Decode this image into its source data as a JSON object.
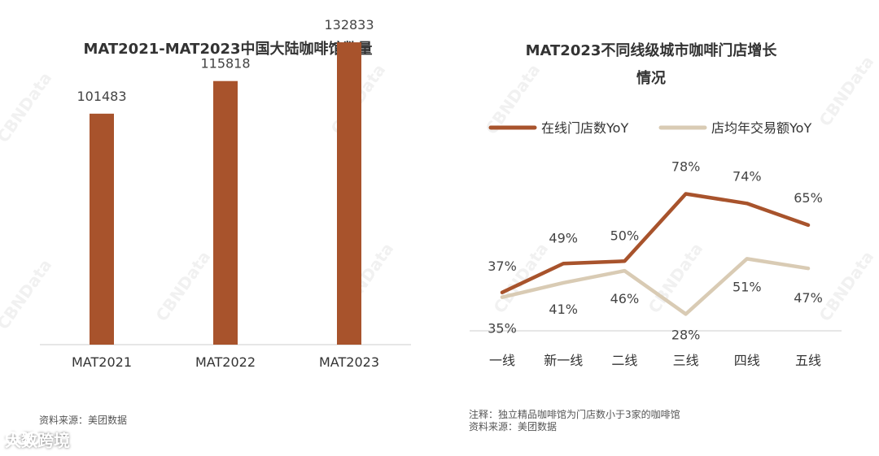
{
  "left": {
    "title": "MAT2021-MAT2023中国大陆咖啡馆数量",
    "source": "资料来源：美团数据"
  },
  "right": {
    "title_line1": "MAT2023不同线级城市咖啡门店增长",
    "title_line2": "情况",
    "note": "注释：独立精品咖啡馆为门店数小于3家的咖啡馆",
    "source": "资料来源：美团数据"
  },
  "watermark": "CBNData",
  "brand": {
    "text": "大数跨境",
    "icon": "brand-logo-icon"
  },
  "colors": {
    "bar": "#A8532C",
    "line_stores": "#A8532C",
    "line_revenue": "#D9CBB4",
    "axis": "#cccccc"
  },
  "chart_data": [
    {
      "type": "bar",
      "title": "MAT2021-MAT2023中国大陆咖啡馆数量",
      "categories": [
        "MAT2021",
        "MAT2022",
        "MAT2023"
      ],
      "values": [
        101483,
        115818,
        132833
      ],
      "value_labels": [
        "101483",
        "115818",
        "132833"
      ],
      "ylim": [
        0,
        140000
      ],
      "grid": false
    },
    {
      "type": "line",
      "title": "MAT2023不同线级城市咖啡门店增长情况",
      "categories": [
        "一线",
        "新一线",
        "二线",
        "三线",
        "四线",
        "五线"
      ],
      "legend_position": "top",
      "ylim": [
        0,
        100
      ],
      "grid": false,
      "series": [
        {
          "name": "在线门店数YoY",
          "values": [
            37,
            49,
            50,
            78,
            74,
            65
          ],
          "labels": [
            "37%",
            "49%",
            "50%",
            "78%",
            "74%",
            "65%"
          ]
        },
        {
          "name": "店均年交易额YoY",
          "values": [
            35,
            41,
            46,
            28,
            51,
            47
          ],
          "labels": [
            "35%",
            "41%",
            "46%",
            "28%",
            "51%",
            "47%"
          ]
        }
      ]
    }
  ]
}
